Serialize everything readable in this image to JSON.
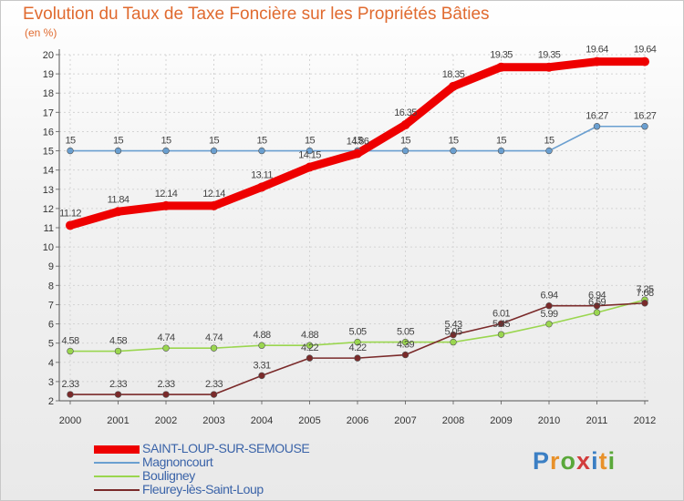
{
  "title": "Evolution du Taux de Taxe Foncière sur les Propriétés Bâties",
  "subtitle": "(en %)",
  "logo": {
    "text": "Proxiti",
    "letter_colors": [
      "#3b7fc4",
      "#e8912a",
      "#5aa83a",
      "#d23c3c",
      "#3b7fc4",
      "#e8912a",
      "#5aa83a"
    ]
  },
  "chart_data": {
    "type": "line",
    "title": "Evolution du Taux de Taxe Foncière sur les Propriétés Bâties",
    "ylabel": "(en %)",
    "x": [
      "2000",
      "2001",
      "2002",
      "2003",
      "2004",
      "2005",
      "2006",
      "2007",
      "2008",
      "2009",
      "2010",
      "2011",
      "2012"
    ],
    "ylim": [
      2,
      20
    ],
    "yticks": [
      2,
      3,
      4,
      5,
      6,
      7,
      8,
      9,
      10,
      11,
      12,
      13,
      14,
      15,
      16,
      17,
      18,
      19,
      20
    ],
    "grid": true,
    "legend": "bottom-left",
    "series": [
      {
        "name": "SAINT-LOUP-SUR-SEMOUSE",
        "color": "#ee0000",
        "values": [
          11.12,
          11.84,
          12.14,
          12.14,
          13.11,
          14.15,
          14.86,
          16.35,
          18.35,
          19.35,
          19.35,
          19.64,
          19.64
        ],
        "labels": [
          "11.12",
          "11.84",
          "12.14",
          "12.14",
          "13.11",
          "14.15",
          "14.86",
          "16.35",
          "18.35",
          "19.35",
          "19.35",
          "19.64",
          "19.64"
        ]
      },
      {
        "name": "Magnoncourt",
        "color": "#6a9fd0",
        "values": [
          15,
          15,
          15,
          15,
          15,
          15,
          15,
          15,
          15,
          15,
          15,
          16.27,
          16.27
        ],
        "labels": [
          "15",
          "15",
          "15",
          "15",
          "15",
          "15",
          "15",
          "15",
          "15",
          "15",
          "15",
          "16.27",
          "16.27"
        ]
      },
      {
        "name": "Bouligney",
        "color": "#9ad64f",
        "values": [
          4.58,
          4.58,
          4.74,
          4.74,
          4.88,
          4.88,
          5.05,
          5.05,
          5.05,
          5.45,
          5.99,
          6.59,
          7.25
        ],
        "labels": [
          "4.58",
          "4.58",
          "4.74",
          "4.74",
          "4.88",
          "4.88",
          "5.05",
          "5.05",
          "5.05",
          "5.45",
          "5.99",
          "6.59",
          "7.25"
        ]
      },
      {
        "name": "Fleurey-lès-Saint-Loup",
        "color": "#7a2a2a",
        "values": [
          2.33,
          2.33,
          2.33,
          2.33,
          3.31,
          4.22,
          4.22,
          4.39,
          5.43,
          6.01,
          6.94,
          6.94,
          7.08
        ],
        "labels": [
          "2.33",
          "2.33",
          "2.33",
          "2.33",
          "3.31",
          "4.22",
          "4.22",
          "4.39",
          "5.43",
          "6.01",
          "6.94",
          "6.94",
          "7.08"
        ]
      }
    ]
  }
}
